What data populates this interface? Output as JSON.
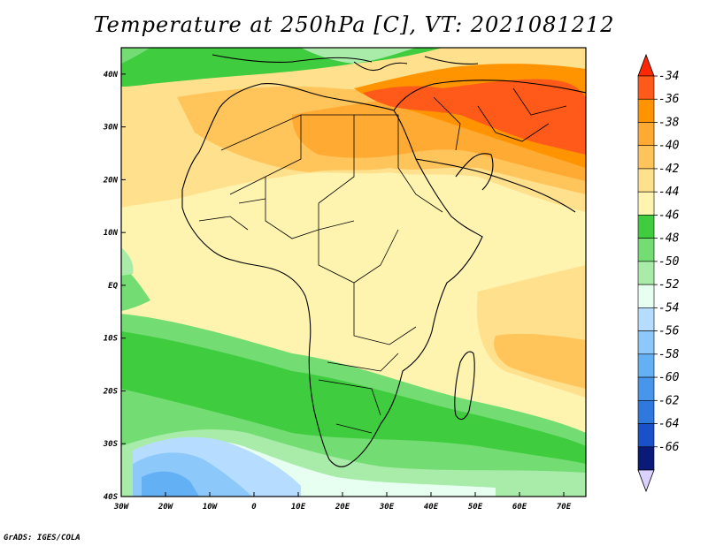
{
  "title": "Temperature at 250hPa [C], VT: 2021081212",
  "credit": "GrADS: IGES/COLA",
  "map": {
    "lon_range": [
      -30,
      75
    ],
    "lat_range": [
      -40,
      45
    ],
    "lon_ticks": [
      {
        "value": -30,
        "label": "30W"
      },
      {
        "value": -20,
        "label": "20W"
      },
      {
        "value": -10,
        "label": "10W"
      },
      {
        "value": 0,
        "label": "0"
      },
      {
        "value": 10,
        "label": "10E"
      },
      {
        "value": 20,
        "label": "20E"
      },
      {
        "value": 30,
        "label": "30E"
      },
      {
        "value": 40,
        "label": "40E"
      },
      {
        "value": 50,
        "label": "50E"
      },
      {
        "value": 60,
        "label": "60E"
      },
      {
        "value": 70,
        "label": "70E"
      }
    ],
    "lat_ticks": [
      {
        "value": 40,
        "label": "40N"
      },
      {
        "value": 30,
        "label": "30N"
      },
      {
        "value": 20,
        "label": "20N"
      },
      {
        "value": 10,
        "label": "10N"
      },
      {
        "value": 0,
        "label": "EQ"
      },
      {
        "value": -10,
        "label": "10S"
      },
      {
        "value": -20,
        "label": "20S"
      },
      {
        "value": -30,
        "label": "30S"
      },
      {
        "value": -40,
        "label": "40S"
      }
    ]
  },
  "colorbar": {
    "labels": [
      "-34",
      "-36",
      "-38",
      "-40",
      "-42",
      "-44",
      "-46",
      "-48",
      "-50",
      "-52",
      "-54",
      "-56",
      "-58",
      "-60",
      "-62",
      "-64",
      "-66"
    ],
    "colors": [
      "#ff5a1a",
      "#ff9400",
      "#ffaa32",
      "#ffc45a",
      "#ffe08c",
      "#fff3b0",
      "#3fcc3f",
      "#73dd73",
      "#a9eca9",
      "#e6fff0",
      "#b6ddff",
      "#8cc8fa",
      "#64b0f4",
      "#4896ec",
      "#2e78de",
      "#1a50c8",
      "#0a1a78"
    ],
    "top_arrow_color": "#ff2800",
    "bottom_arrow_color": "#dcd2ff"
  }
}
